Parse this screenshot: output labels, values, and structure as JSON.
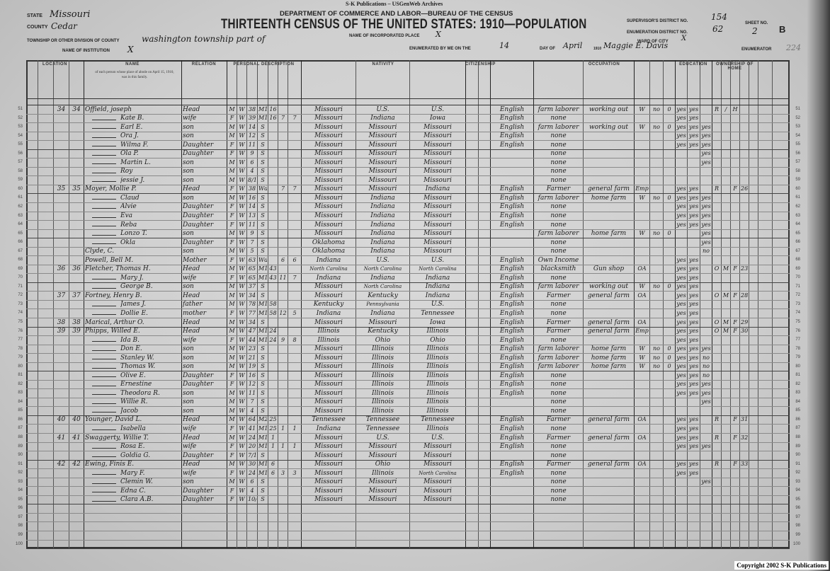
{
  "publisher_line": "S-K Publications – USGenWeb Archives",
  "header": {
    "department": "DEPARTMENT OF COMMERCE AND LABOR—BUREAU OF THE CENSUS",
    "title": "THIRTEENTH CENSUS OF THE UNITED STATES: 1910—POPULATION",
    "state_label": "STATE",
    "state": "Missouri",
    "county_label": "COUNTY",
    "county": "Cedar",
    "township_label": "TOWNSHIP OR OTHER DIVISION OF COUNTY",
    "township": "washington township part of",
    "institution_label": "NAME OF INSTITUTION",
    "institution": "X",
    "place_label": "NAME OF INCORPORATED PLACE",
    "place": "X",
    "enumerated_label": "ENUMERATED BY ME ON THE",
    "enumerated_day": "14",
    "day_of_label": "DAY OF",
    "enumerated_month": "April",
    "year_label": "1910",
    "enumerator": "Maggie E. Davis",
    "enumerator_label": "ENUMERATOR",
    "supervisor_label": "SUPERVISOR'S DISTRICT NO.",
    "supervisor_district": "154",
    "ed_label": "ENUMERATION DISTRICT NO.",
    "enumeration_district": "62",
    "ward_label": "WARD OF CITY",
    "ward": "X",
    "sheet_label": "SHEET NO.",
    "sheet": "2",
    "sheet_side": "B",
    "stamp_number": "224"
  },
  "column_groups": [
    "LOCATION",
    "NAME",
    "RELATION",
    "PERSONAL DESCRIPTION",
    "NATIVITY",
    "CITIZENSHIP",
    "OCCUPATION",
    "EDUCATION",
    "OWNERSHIP OF HOME"
  ],
  "name_column_note": "of each person whose place of abode on April 15, 1910, was in this family.",
  "rows": [
    {
      "ln": "51",
      "dw": "34",
      "fam": "34",
      "name": "Offield, joseph",
      "rel": "Head",
      "sex": "M",
      "col": "W",
      "age": "38",
      "mar": "M1",
      "yrs": "16",
      "bpl": "Missouri",
      "fbp": "U.S.",
      "mbp": "U.S.",
      "lang": "English",
      "occ": "farm laborer",
      "ind": "working out",
      "emp": "W",
      "oow": "no",
      "wks": "0",
      "rd": "yes",
      "wr": "yes",
      "own": "R",
      "free": "/",
      "farm": "H"
    },
    {
      "ln": "52",
      "name": "Kate B.",
      "rel": "wife",
      "sex": "F",
      "col": "W",
      "age": "39",
      "mar": "M1",
      "yrs": "16",
      "born": "7",
      "liv": "7",
      "bpl": "Missouri",
      "fbp": "Indiana",
      "mbp": "Iowa",
      "lang": "English",
      "occ": "none",
      "rd": "yes",
      "wr": "yes"
    },
    {
      "ln": "53",
      "name": "Earl E.",
      "rel": "son",
      "sex": "M",
      "col": "W",
      "age": "14",
      "mar": "S",
      "bpl": "Missouri",
      "fbp": "Missouri",
      "mbp": "Missouri",
      "lang": "English",
      "occ": "farm laborer",
      "ind": "working out",
      "emp": "W",
      "oow": "no",
      "wks": "0",
      "rd": "yes",
      "wr": "yes",
      "sch": "yes"
    },
    {
      "ln": "54",
      "name": "Ora J.",
      "rel": "son",
      "sex": "M",
      "col": "W",
      "age": "12",
      "mar": "S",
      "bpl": "Missouri",
      "fbp": "Missouri",
      "mbp": "Missouri",
      "lang": "English",
      "occ": "none",
      "rd": "yes",
      "wr": "yes",
      "sch": "yes"
    },
    {
      "ln": "55",
      "name": "Wilma F.",
      "rel": "Daughter",
      "sex": "F",
      "col": "W",
      "age": "11",
      "mar": "S",
      "bpl": "Missouri",
      "fbp": "Missouri",
      "mbp": "Missouri",
      "lang": "English",
      "occ": "none",
      "rd": "yes",
      "wr": "yes",
      "sch": "yes"
    },
    {
      "ln": "56",
      "name": "Ola P.",
      "rel": "Daughter",
      "sex": "F",
      "col": "W",
      "age": "9",
      "mar": "S",
      "bpl": "Missouri",
      "fbp": "Missouri",
      "mbp": "Missouri",
      "occ": "none",
      "sch": "yes"
    },
    {
      "ln": "57",
      "name": "Martin L.",
      "rel": "son",
      "sex": "M",
      "col": "W",
      "age": "6",
      "mar": "S",
      "bpl": "Missouri",
      "fbp": "Missouri",
      "mbp": "Missouri",
      "occ": "none",
      "sch": "yes"
    },
    {
      "ln": "58",
      "name": "Roy",
      "rel": "son",
      "sex": "M",
      "col": "W",
      "age": "4",
      "mar": "S",
      "bpl": "Missouri",
      "fbp": "Missouri",
      "mbp": "Missouri",
      "occ": "none"
    },
    {
      "ln": "59",
      "name": "jessie J.",
      "rel": "son",
      "sex": "M",
      "col": "W",
      "age": "8/12",
      "mar": "S",
      "bpl": "Missouri",
      "fbp": "Missouri",
      "mbp": "Missouri",
      "occ": "none"
    },
    {
      "ln": "60",
      "dw": "35",
      "fam": "35",
      "name": "Moyer, Mollie P.",
      "rel": "Head",
      "sex": "F",
      "col": "W",
      "age": "38",
      "mar": "Wd",
      "born": "7",
      "liv": "7",
      "bpl": "Missouri",
      "fbp": "Missouri",
      "mbp": "Indiana",
      "lang": "English",
      "occ": "Farmer",
      "ind": "general farm",
      "emp": "Emp",
      "rd": "yes",
      "wr": "yes",
      "own": "R",
      "farm": "F",
      "sched": "26"
    },
    {
      "ln": "61",
      "name": "Claud",
      "rel": "son",
      "sex": "M",
      "col": "W",
      "age": "16",
      "mar": "S",
      "bpl": "Missouri",
      "fbp": "Indiana",
      "mbp": "Missouri",
      "lang": "English",
      "occ": "farm laborer",
      "ind": "home farm",
      "emp": "W",
      "oow": "no",
      "wks": "0",
      "rd": "yes",
      "wr": "yes",
      "sch": "yes"
    },
    {
      "ln": "62",
      "name": "Alvie",
      "rel": "Daughter",
      "sex": "F",
      "col": "W",
      "age": "14",
      "mar": "S",
      "bpl": "Missouri",
      "fbp": "Indiana",
      "mbp": "Missouri",
      "lang": "English",
      "occ": "none",
      "rd": "yes",
      "wr": "yes",
      "sch": "yes"
    },
    {
      "ln": "63",
      "name": "Eva",
      "rel": "Daughter",
      "sex": "F",
      "col": "W",
      "age": "13",
      "mar": "S",
      "bpl": "Missouri",
      "fbp": "Indiana",
      "mbp": "Missouri",
      "lang": "English",
      "occ": "none",
      "rd": "yes",
      "wr": "yes",
      "sch": "yes"
    },
    {
      "ln": "64",
      "name": "Reba",
      "rel": "Daughter",
      "sex": "F",
      "col": "W",
      "age": "11",
      "mar": "S",
      "bpl": "Missouri",
      "fbp": "Indiana",
      "mbp": "Missouri",
      "lang": "English",
      "occ": "none",
      "rd": "yes",
      "wr": "yes",
      "sch": "yes"
    },
    {
      "ln": "65",
      "name": "Lonzo T.",
      "rel": "son",
      "sex": "M",
      "col": "W",
      "age": "9",
      "mar": "S",
      "bpl": "Missouri",
      "fbp": "Indiana",
      "mbp": "Missouri",
      "occ": "farm laborer",
      "ind": "home farm",
      "emp": "W",
      "oow": "no",
      "wks": "0",
      "sch": "yes"
    },
    {
      "ln": "66",
      "name": "Okla",
      "rel": "Daughter",
      "sex": "F",
      "col": "W",
      "age": "7",
      "mar": "S",
      "bpl": "Oklahoma",
      "fbp": "Indiana",
      "mbp": "Missouri",
      "occ": "none",
      "sch": "yes"
    },
    {
      "ln": "67",
      "name": "Clyde, C.",
      "rel": "son",
      "sex": "M",
      "col": "W",
      "age": "5",
      "mar": "S",
      "bpl": "Oklahoma",
      "fbp": "Indiana",
      "mbp": "Missouri",
      "occ": "none",
      "sch": "no"
    },
    {
      "ln": "68",
      "name": "Powell, Bell M.",
      "rel": "Mother",
      "sex": "F",
      "col": "W",
      "age": "63",
      "mar": "Wd",
      "born": "6",
      "liv": "6",
      "bpl": "Indiana",
      "fbp": "U.S.",
      "mbp": "U.S.",
      "lang": "English",
      "occ": "Own Income",
      "rd": "yes",
      "wr": "yes"
    },
    {
      "ln": "69",
      "dw": "36",
      "fam": "36",
      "name": "Fletcher, Thomas H.",
      "rel": "Head",
      "sex": "M",
      "col": "W",
      "age": "65",
      "mar": "M1",
      "yrs": "43",
      "bpl": "North Carolina",
      "fbp": "North Carolina",
      "mbp": "North Carolina",
      "lang": "English",
      "occ": "blacksmith",
      "ind": "Gun shop",
      "emp": "OA",
      "rd": "yes",
      "wr": "yes",
      "own": "O",
      "free": "M",
      "farm": "F",
      "sched": "23"
    },
    {
      "ln": "70",
      "name": "Mary J.",
      "rel": "wife",
      "sex": "F",
      "col": "W",
      "age": "65",
      "mar": "M1",
      "yrs": "43",
      "born": "11",
      "liv": "7",
      "bpl": "Indiana",
      "fbp": "Indiana",
      "mbp": "Indiana",
      "lang": "English",
      "occ": "none",
      "rd": "yes",
      "wr": "yes"
    },
    {
      "ln": "71",
      "name": "George B.",
      "rel": "son",
      "sex": "M",
      "col": "W",
      "age": "37",
      "mar": "S",
      "bpl": "Missouri",
      "fbp": "North Carolina",
      "mbp": "Indiana",
      "lang": "English",
      "occ": "farm laborer",
      "ind": "working out",
      "emp": "W",
      "oow": "no",
      "wks": "0",
      "rd": "yes",
      "wr": "yes"
    },
    {
      "ln": "72",
      "dw": "37",
      "fam": "37",
      "name": "Fortney, Henry B.",
      "rel": "Head",
      "sex": "M",
      "col": "W",
      "age": "34",
      "mar": "S",
      "bpl": "Missouri",
      "fbp": "Kentucky",
      "mbp": "Indiana",
      "lang": "English",
      "occ": "Farmer",
      "ind": "general farm",
      "emp": "OA",
      "rd": "yes",
      "wr": "yes",
      "own": "O",
      "free": "M",
      "farm": "F",
      "sched": "28"
    },
    {
      "ln": "73",
      "name": "James J.",
      "rel": "father",
      "sex": "M",
      "col": "W",
      "age": "78",
      "mar": "M1",
      "yrs": "58",
      "bpl": "Kentucky",
      "fbp": "Pennsylvania",
      "mbp": "U.S.",
      "lang": "English",
      "occ": "none",
      "rd": "yes",
      "wr": "yes"
    },
    {
      "ln": "74",
      "name": "Dollie E.",
      "rel": "mother",
      "sex": "F",
      "col": "W",
      "age": "77",
      "mar": "M1",
      "yrs": "58",
      "born": "12",
      "liv": "5",
      "bpl": "Indiana",
      "fbp": "Indiana",
      "mbp": "Tennessee",
      "lang": "English",
      "occ": "none",
      "rd": "yes",
      "wr": "yes"
    },
    {
      "ln": "75",
      "dw": "38",
      "fam": "38",
      "name": "Marical, Arthur O.",
      "rel": "Head",
      "sex": "M",
      "col": "W",
      "age": "34",
      "mar": "S",
      "bpl": "Missouri",
      "fbp": "Missouri",
      "mbp": "Iowa",
      "lang": "English",
      "occ": "Farmer",
      "ind": "general farm",
      "emp": "OA",
      "rd": "yes",
      "wr": "yes",
      "own": "O",
      "free": "M",
      "farm": "F",
      "sched": "29"
    },
    {
      "ln": "76",
      "dw": "39",
      "fam": "39",
      "name": "Phipps, Willed E.",
      "rel": "Head",
      "sex": "M",
      "col": "W",
      "age": "47",
      "mar": "M1",
      "yrs": "24",
      "bpl": "Illinois",
      "fbp": "Kentucky",
      "mbp": "Illinois",
      "lang": "English",
      "occ": "Farmer",
      "ind": "general farm",
      "emp": "Emp",
      "rd": "yes",
      "wr": "yes",
      "own": "O",
      "free": "M",
      "farm": "F",
      "sched": "30"
    },
    {
      "ln": "77",
      "name": "Ida B.",
      "rel": "wife",
      "sex": "F",
      "col": "W",
      "age": "44",
      "mar": "M1",
      "yrs": "24",
      "born": "9",
      "liv": "8",
      "bpl": "Illinois",
      "fbp": "Ohio",
      "mbp": "Ohio",
      "lang": "English",
      "occ": "none",
      "rd": "yes",
      "wr": "yes"
    },
    {
      "ln": "78",
      "name": "Don E.",
      "rel": "son",
      "sex": "M",
      "col": "W",
      "age": "23",
      "mar": "S",
      "bpl": "Missouri",
      "fbp": "Illinois",
      "mbp": "Illinois",
      "lang": "English",
      "occ": "farm laborer",
      "ind": "home farm",
      "emp": "W",
      "oow": "no",
      "wks": "0",
      "rd": "yes",
      "wr": "yes",
      "sch": "yes"
    },
    {
      "ln": "79",
      "name": "Stanley W.",
      "rel": "son",
      "sex": "M",
      "col": "W",
      "age": "21",
      "mar": "S",
      "bpl": "Missouri",
      "fbp": "Illinois",
      "mbp": "Illinois",
      "lang": "English",
      "occ": "farm laborer",
      "ind": "home farm",
      "emp": "W",
      "oow": "no",
      "wks": "0",
      "rd": "yes",
      "wr": "yes",
      "sch": "no"
    },
    {
      "ln": "80",
      "name": "Thomas W.",
      "rel": "son",
      "sex": "M",
      "col": "W",
      "age": "19",
      "mar": "S",
      "bpl": "Missouri",
      "fbp": "Illinois",
      "mbp": "Illinois",
      "lang": "English",
      "occ": "farm laborer",
      "ind": "home farm",
      "emp": "W",
      "oow": "no",
      "wks": "0",
      "rd": "yes",
      "wr": "yes",
      "sch": "no"
    },
    {
      "ln": "81",
      "name": "Olive E.",
      "rel": "Daughter",
      "sex": "F",
      "col": "W",
      "age": "16",
      "mar": "S",
      "bpl": "Missouri",
      "fbp": "Illinois",
      "mbp": "Illinois",
      "lang": "English",
      "occ": "none",
      "rd": "yes",
      "wr": "yes",
      "sch": "no"
    },
    {
      "ln": "82",
      "name": "Ernestine",
      "rel": "Daughter",
      "sex": "F",
      "col": "W",
      "age": "12",
      "mar": "S",
      "bpl": "Missouri",
      "fbp": "Illinois",
      "mbp": "Illinois",
      "lang": "English",
      "occ": "none",
      "rd": "yes",
      "wr": "yes",
      "sch": "yes"
    },
    {
      "ln": "83",
      "name": "Theodora R.",
      "rel": "son",
      "sex": "M",
      "col": "W",
      "age": "11",
      "mar": "S",
      "bpl": "Missouri",
      "fbp": "Illinois",
      "mbp": "Illinois",
      "lang": "English",
      "occ": "none",
      "rd": "yes",
      "wr": "yes",
      "sch": "yes"
    },
    {
      "ln": "84",
      "name": "Willie R.",
      "rel": "son",
      "sex": "M",
      "col": "W",
      "age": "7",
      "mar": "S",
      "bpl": "Missouri",
      "fbp": "Illinois",
      "mbp": "Illinois",
      "occ": "none",
      "sch": "yes"
    },
    {
      "ln": "85",
      "name": "Jacob",
      "rel": "son",
      "sex": "M",
      "col": "W",
      "age": "4",
      "mar": "S",
      "bpl": "Missouri",
      "fbp": "Illinois",
      "mbp": "Illinois",
      "occ": "none"
    },
    {
      "ln": "86",
      "dw": "40",
      "fam": "40",
      "name": "Younger, David L.",
      "rel": "Head",
      "sex": "M",
      "col": "W",
      "age": "64",
      "mar": "M2",
      "yrs": "25",
      "bpl": "Tennessee",
      "fbp": "Tennessee",
      "mbp": "Tennessee",
      "lang": "English",
      "occ": "Farmer",
      "ind": "general farm",
      "emp": "OA",
      "rd": "yes",
      "wr": "yes",
      "own": "R",
      "farm": "F",
      "sched": "31"
    },
    {
      "ln": "87",
      "name": "Isabella",
      "rel": "wife",
      "sex": "F",
      "col": "W",
      "age": "41",
      "mar": "M1",
      "yrs": "25",
      "born": "1",
      "liv": "1",
      "bpl": "Indiana",
      "fbp": "Tennessee",
      "mbp": "Illinois",
      "lang": "English",
      "occ": "none",
      "rd": "yes",
      "wr": "yes"
    },
    {
      "ln": "88",
      "dw": "41",
      "fam": "41",
      "name": "Swaggerty, Willie T.",
      "rel": "Head",
      "sex": "M",
      "col": "W",
      "age": "24",
      "mar": "M1",
      "yrs": "1",
      "bpl": "Missouri",
      "fbp": "U.S.",
      "mbp": "U.S.",
      "lang": "English",
      "occ": "Farmer",
      "ind": "general farm",
      "emp": "OA",
      "rd": "yes",
      "wr": "yes",
      "own": "R",
      "farm": "F",
      "sched": "32"
    },
    {
      "ln": "89",
      "name": "Rosa E.",
      "rel": "wife",
      "sex": "F",
      "col": "W",
      "age": "20",
      "mar": "M1",
      "yrs": "1",
      "born": "1",
      "liv": "1",
      "bpl": "Missouri",
      "fbp": "Missouri",
      "mbp": "Missouri",
      "lang": "English",
      "occ": "none",
      "rd": "yes",
      "wr": "yes",
      "sch": "yes"
    },
    {
      "ln": "90",
      "name": "Goldia G.",
      "rel": "Daughter",
      "sex": "F",
      "col": "W",
      "age": "7/12",
      "mar": "S",
      "bpl": "Missouri",
      "fbp": "Missouri",
      "mbp": "Missouri",
      "occ": "none"
    },
    {
      "ln": "91",
      "dw": "42",
      "fam": "42",
      "name": "Ewing, Finis E.",
      "rel": "Head",
      "sex": "M",
      "col": "W",
      "age": "30",
      "mar": "M1",
      "yrs": "6",
      "bpl": "Missouri",
      "fbp": "Ohio",
      "mbp": "Missouri",
      "lang": "English",
      "occ": "Farmer",
      "ind": "general farm",
      "emp": "OA",
      "rd": "yes",
      "wr": "yes",
      "own": "R",
      "farm": "F",
      "sched": "33"
    },
    {
      "ln": "92",
      "name": "Mary F.",
      "rel": "wife",
      "sex": "F",
      "col": "W",
      "age": "24",
      "mar": "M1",
      "yrs": "6",
      "born": "3",
      "liv": "3",
      "bpl": "Missouri",
      "fbp": "Illinois",
      "mbp": "North Carolina",
      "lang": "English",
      "occ": "none",
      "rd": "yes",
      "wr": "yes"
    },
    {
      "ln": "93",
      "name": "Clemin W.",
      "rel": "son",
      "sex": "M",
      "col": "W",
      "age": "6",
      "mar": "S",
      "bpl": "Missouri",
      "fbp": "Missouri",
      "mbp": "Missouri",
      "occ": "none",
      "sch": "yes"
    },
    {
      "ln": "94",
      "name": "Edna C.",
      "rel": "Daughter",
      "sex": "F",
      "col": "W",
      "age": "4",
      "mar": "S",
      "bpl": "Missouri",
      "fbp": "Missouri",
      "mbp": "Missouri",
      "occ": "none"
    },
    {
      "ln": "95",
      "name": "Clara A.B.",
      "rel": "Daughter",
      "sex": "F",
      "col": "W",
      "age": "10/12",
      "mar": "S",
      "bpl": "Missouri",
      "fbp": "Missouri",
      "mbp": "Missouri",
      "occ": "none"
    },
    {
      "ln": "96"
    },
    {
      "ln": "97"
    },
    {
      "ln": "98"
    },
    {
      "ln": "99"
    },
    {
      "ln": "100"
    }
  ],
  "copyright": "Copyright 2002 S-K Publications"
}
